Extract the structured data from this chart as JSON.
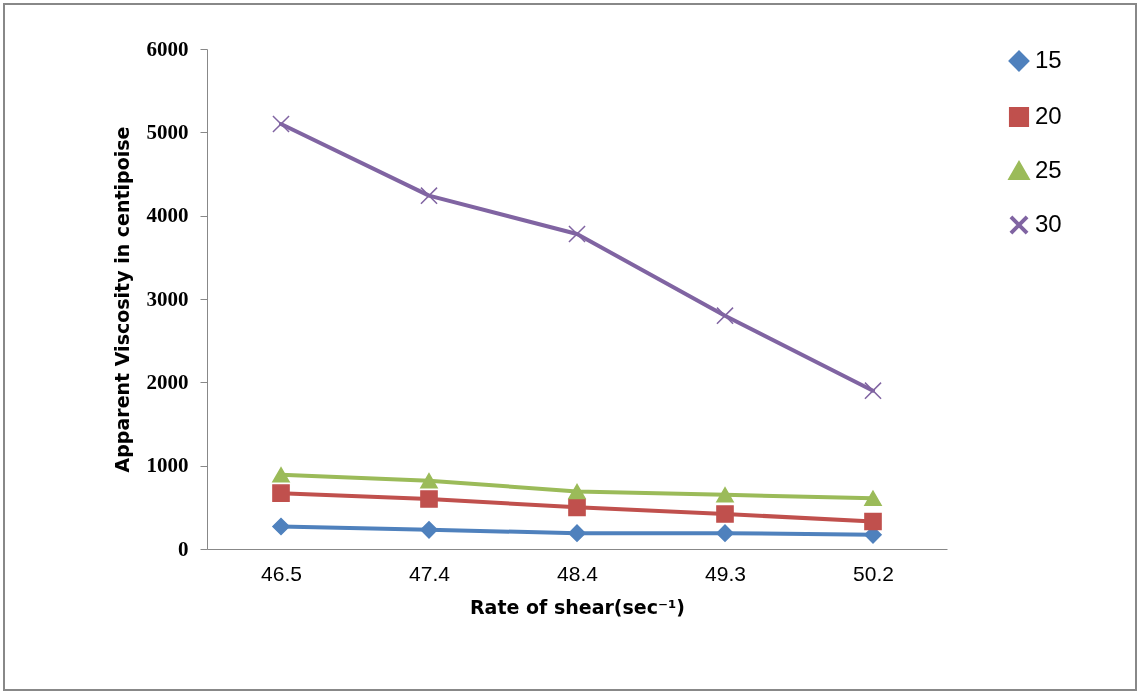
{
  "chart_data": {
    "type": "line",
    "xlabel": "Rate of shear(sec⁻¹)",
    "ylabel": "Apparent Viscosity in centipoise",
    "categories": [
      "46.5",
      "47.4",
      "48.4",
      "49.3",
      "50.2"
    ],
    "series": [
      {
        "name": "15",
        "color": "#4f81bd",
        "marker": "diamond",
        "values": [
          270,
          230,
          190,
          190,
          170
        ]
      },
      {
        "name": "20",
        "color": "#c0504d",
        "marker": "square",
        "values": [
          670,
          600,
          500,
          420,
          330
        ]
      },
      {
        "name": "25",
        "color": "#9bbb59",
        "marker": "triangle",
        "values": [
          890,
          820,
          690,
          650,
          610
        ]
      },
      {
        "name": "30",
        "color": "#8064a2",
        "marker": "cross",
        "values": [
          5100,
          4240,
          3780,
          2800,
          1900
        ]
      }
    ],
    "ylim": [
      0,
      6000
    ],
    "yticks": [
      0,
      1000,
      2000,
      3000,
      4000,
      5000,
      6000
    ],
    "grid": false,
    "legend": "right",
    "line_style": "solid"
  }
}
